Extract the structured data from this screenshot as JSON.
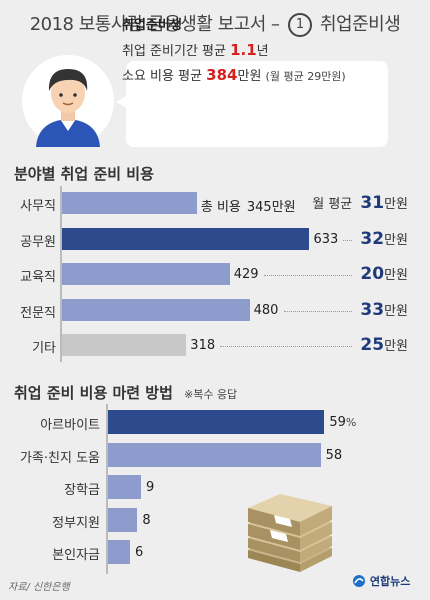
{
  "header": {
    "title_pre": "2018 보통사람 금융생활 보고서 – ",
    "title_num": "1",
    "title_post": " 취업준비생"
  },
  "profile": {
    "name": "취업준비생",
    "period_pre": "취업 준비기간 평균 ",
    "period_value": "1.1",
    "period_unit": "년",
    "cost_pre": "소요 비용 평균 ",
    "cost_value": "384",
    "cost_unit": "만원",
    "cost_monthly": "(월 평균 29만원)"
  },
  "section1": {
    "title": "분야별 취업 준비 비용"
  },
  "section2": {
    "title": "취업 준비 비용 마련 방법",
    "note": "※복수 응답"
  },
  "footer": {
    "source": "자료/ 신한은행",
    "logo": "연합뉴스"
  },
  "colors": {
    "blue_light": "#8d9bcd",
    "blue_dark": "#2c4a8c",
    "gray": "#c8c8c8",
    "accent_red": "#d42020"
  },
  "chart_data": [
    {
      "type": "bar",
      "title": "분야별 취업 준비 비용",
      "categories": [
        "사무직",
        "공무원",
        "교육직",
        "전문직",
        "기타"
      ],
      "series": [
        {
          "name": "총 비용",
          "values": [
            345,
            633,
            429,
            480,
            318
          ]
        },
        {
          "name": "월 평균",
          "values": [
            31,
            32,
            20,
            33,
            25
          ]
        }
      ],
      "value_labels": [
        "345",
        "633",
        "429",
        "480",
        "318"
      ],
      "monthly_labels": [
        "31",
        "32",
        "20",
        "33",
        "25"
      ],
      "first_total_prefix": "총 비용",
      "first_monthly_prefix": "월 평균",
      "unit": "만원",
      "highlight_index": 1,
      "gray_index": 4,
      "xlim": [
        0,
        660
      ]
    },
    {
      "type": "bar",
      "title": "취업 준비 비용 마련 방법",
      "categories": [
        "아르바이트",
        "가족·친지 도움",
        "장학금",
        "정부지원",
        "본인자금"
      ],
      "values": [
        59,
        58,
        9,
        8,
        6
      ],
      "value_labels": [
        "59",
        "58",
        "9",
        "8",
        "6"
      ],
      "first_unit": "%",
      "highlight_index": 0,
      "xlim": [
        0,
        60
      ]
    }
  ]
}
